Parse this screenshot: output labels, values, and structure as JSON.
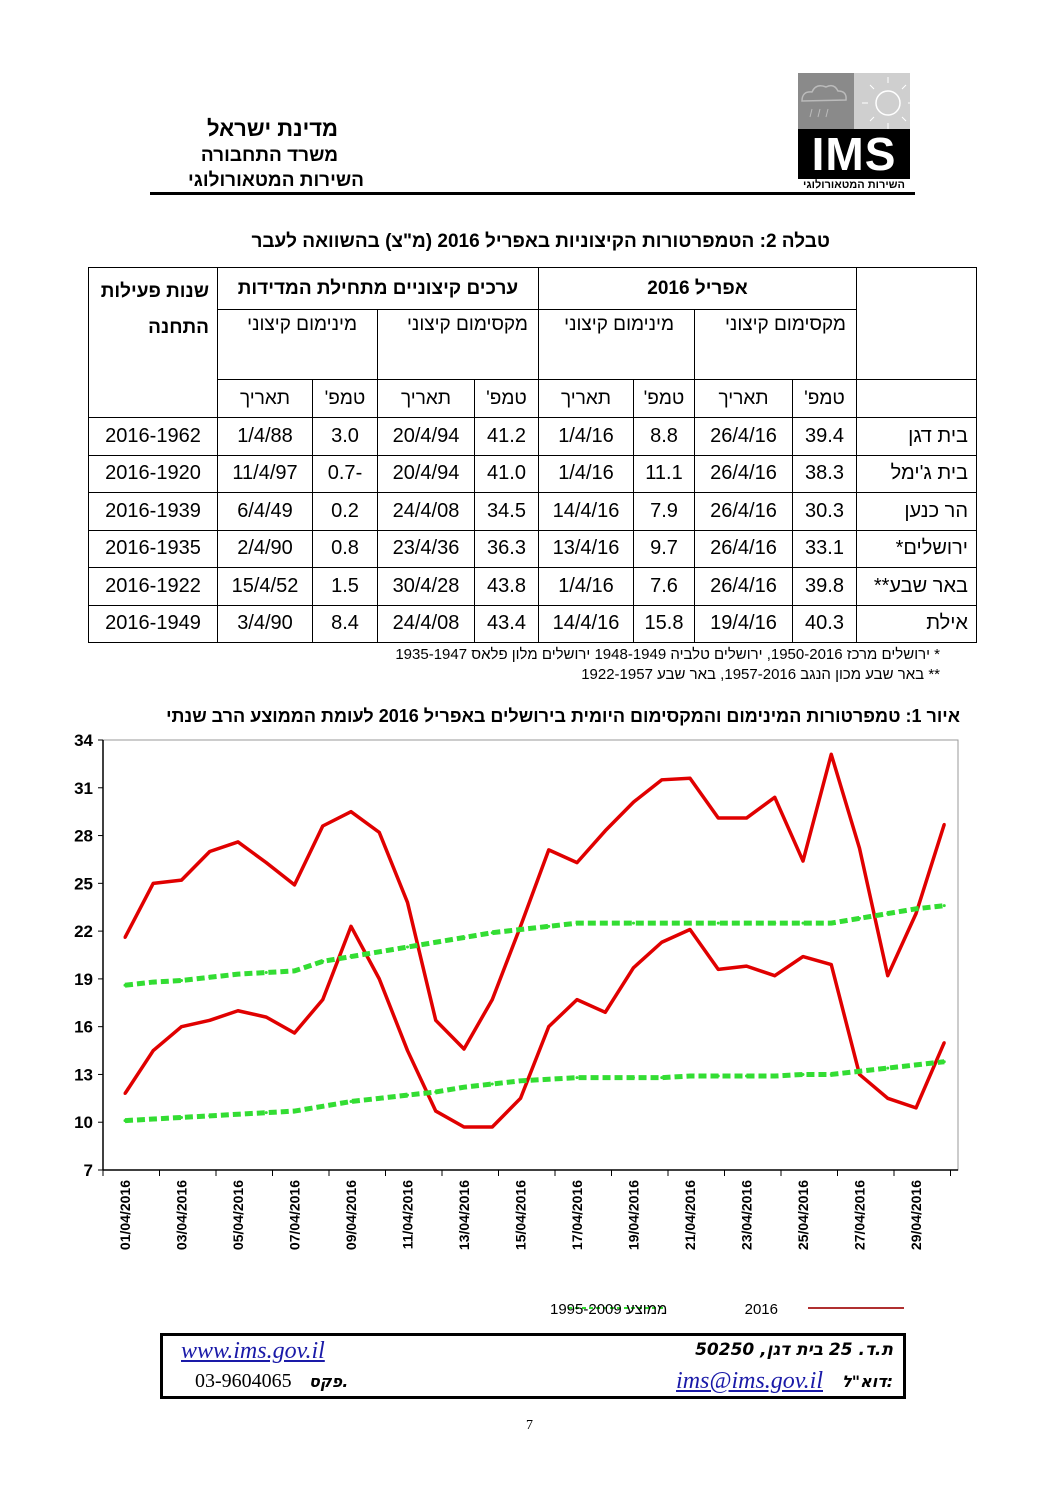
{
  "header": {
    "line1": "מדינת ישראל",
    "line2": "משרד התחבורה",
    "line3": "השירות המטאורולוגי",
    "logo_text": "IMS",
    "logo_sub": "השירות המטאורולוגי"
  },
  "table": {
    "title": "טבלה 2: הטמפרטורות הקיצוניות באפריל 2016 (מ\"צ) בהשוואה לעבר",
    "group_april": "אפריל 2016",
    "group_hist": "ערכים קיצוניים מתחילת המדידות",
    "years_header": "שנות פעילות התחנה",
    "max_label": "מקסימום קיצוני",
    "min_label": "מינימום קיצוני",
    "temp_label": "טמפ'",
    "date_label": "תאריך",
    "rows": [
      {
        "station": "בית דגן",
        "max_t": "39.4",
        "max_d": "26/4/16",
        "min_t": "8.8",
        "min_d": "1/4/16",
        "hmax_t": "41.2",
        "hmax_d": "20/4/94",
        "hmin_t": "3.0",
        "hmin_d": "1/4/88",
        "years": "2016-1962"
      },
      {
        "station": "בית ג'ימל",
        "max_t": "38.3",
        "max_d": "26/4/16",
        "min_t": "11.1",
        "min_d": "1/4/16",
        "hmax_t": "41.0",
        "hmax_d": "20/4/94",
        "hmin_t": "-0.7",
        "hmin_d": "11/4/97",
        "years": "2016-1920"
      },
      {
        "station": "הר כנען",
        "max_t": "30.3",
        "max_d": "26/4/16",
        "min_t": "7.9",
        "min_d": "14/4/16",
        "hmax_t": "34.5",
        "hmax_d": "24/4/08",
        "hmin_t": "0.2",
        "hmin_d": "6/4/49",
        "years": "2016-1939"
      },
      {
        "station": "ירושלים*",
        "max_t": "33.1",
        "max_d": "26/4/16",
        "min_t": "9.7",
        "min_d": "13/4/16",
        "hmax_t": "36.3",
        "hmax_d": "23/4/36",
        "hmin_t": "0.8",
        "hmin_d": "2/4/90",
        "years": "2016-1935"
      },
      {
        "station": "באר שבע**",
        "max_t": "39.8",
        "max_d": "26/4/16",
        "min_t": "7.6",
        "min_d": "1/4/16",
        "hmax_t": "43.8",
        "hmax_d": "30/4/28",
        "hmin_t": "1.5",
        "hmin_d": "15/4/52",
        "years": "2016-1922"
      },
      {
        "station": "אילת",
        "max_t": "40.3",
        "max_d": "19/4/16",
        "min_t": "15.8",
        "min_d": "14/4/16",
        "hmax_t": "43.4",
        "hmax_d": "24/4/08",
        "hmin_t": "8.4",
        "hmin_d": "3/4/90",
        "years": "2016-1949"
      }
    ],
    "footnote1": "* ירושלים מרכז 1950-2016, ירושלים טלביה 1948-1949 ירושלים מלון פלאס 1935-1947",
    "footnote2": "** באר שבע מכון הנגב 1957-2016, באר שבע 1922-1957"
  },
  "chart_data": {
    "type": "line",
    "title": "איור 1: טמפרטורות המינימום והמקסימום היומית בירושלים באפריל 2016 לעומת הממוצע הרב שנתי",
    "xlabel": "",
    "ylabel": "",
    "ylim": [
      7,
      34
    ],
    "yticks": [
      7,
      10,
      13,
      16,
      19,
      22,
      25,
      28,
      31,
      34
    ],
    "xtick_labels": [
      "01/04/2016",
      "03/04/2016",
      "05/04/2016",
      "07/04/2016",
      "09/04/2016",
      "11/04/2016",
      "13/04/2016",
      "15/04/2016",
      "17/04/2016",
      "19/04/2016",
      "21/04/2016",
      "23/04/2016",
      "25/04/2016",
      "27/04/2016",
      "29/04/2016"
    ],
    "x": [
      1,
      2,
      3,
      4,
      5,
      6,
      7,
      8,
      9,
      10,
      11,
      12,
      13,
      14,
      15,
      16,
      17,
      18,
      19,
      20,
      21,
      22,
      23,
      24,
      25,
      26,
      27,
      28,
      29,
      30
    ],
    "legend": {
      "position": "bottom",
      "items": [
        {
          "label": "2016",
          "color": "#e00000",
          "style": "solid"
        },
        {
          "label": "ממוצע 1995-2009",
          "color": "#33dd33",
          "style": "dashed"
        }
      ]
    },
    "series": [
      {
        "name": "2016 max",
        "color": "#e00000",
        "values": [
          21.6,
          25.0,
          25.2,
          27.0,
          27.6,
          26.3,
          24.9,
          28.6,
          29.5,
          28.2,
          23.8,
          16.4,
          14.6,
          17.7,
          22.3,
          27.1,
          26.3,
          28.3,
          30.1,
          31.5,
          31.6,
          29.1,
          29.1,
          30.4,
          26.4,
          33.1,
          27.2,
          19.2,
          23.1,
          28.7
        ]
      },
      {
        "name": "2016 min",
        "color": "#e00000",
        "values": [
          11.8,
          14.5,
          16.0,
          16.4,
          17.0,
          16.6,
          15.6,
          17.7,
          22.3,
          19.0,
          14.5,
          10.7,
          9.7,
          9.7,
          11.5,
          16.0,
          17.7,
          16.9,
          19.7,
          21.3,
          22.1,
          19.6,
          19.8,
          19.2,
          20.4,
          19.9,
          13.0,
          11.5,
          10.9,
          15.0
        ]
      },
      {
        "name": "avg max 1995-2009",
        "color": "#33dd33",
        "values": [
          18.6,
          18.8,
          18.9,
          19.1,
          19.3,
          19.4,
          19.5,
          20.1,
          20.4,
          20.7,
          21.0,
          21.3,
          21.6,
          21.9,
          22.1,
          22.3,
          22.5,
          22.5,
          22.5,
          22.5,
          22.5,
          22.5,
          22.5,
          22.5,
          22.5,
          22.5,
          22.8,
          23.1,
          23.4,
          23.6
        ]
      },
      {
        "name": "avg min 1995-2009",
        "color": "#33dd33",
        "values": [
          10.1,
          10.2,
          10.3,
          10.4,
          10.5,
          10.6,
          10.7,
          11.0,
          11.3,
          11.5,
          11.7,
          11.9,
          12.2,
          12.4,
          12.6,
          12.7,
          12.8,
          12.8,
          12.8,
          12.8,
          12.9,
          12.9,
          12.9,
          12.9,
          13.0,
          13.0,
          13.2,
          13.4,
          13.6,
          13.8
        ]
      }
    ]
  },
  "footer": {
    "address": "ת.ד. 25 בית דגן, 50250",
    "website": "www.ims.gov.il",
    "email_label": "דוא\"ל:",
    "email": "ims@ims.gov.il",
    "fax_label": "פקס.",
    "fax": "03-9604065",
    "page_number": "7"
  }
}
